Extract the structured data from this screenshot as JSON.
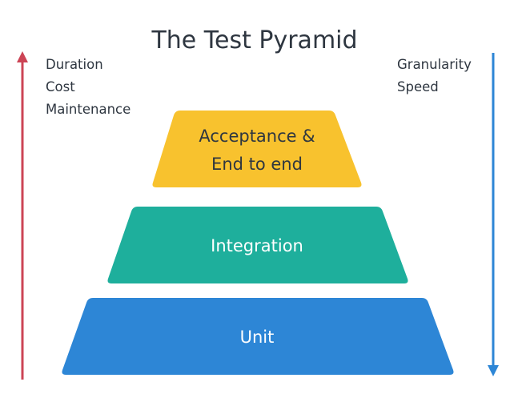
{
  "title": "The Test Pyramid",
  "left_labels": [
    "Duration",
    "Cost",
    "Maintenance"
  ],
  "right_labels": [
    "Granularity",
    "Speed"
  ],
  "left_arrow": {
    "direction": "up",
    "color": "#cc4455"
  },
  "right_arrow": {
    "direction": "down",
    "color": "#2d86d6"
  },
  "tiers": [
    {
      "lines": [
        "Acceptance &",
        "End to end"
      ],
      "color": "#f8c22e",
      "text_color": "#2e3640"
    },
    {
      "lines": [
        "Integration"
      ],
      "color": "#1eaf9c",
      "text_color": "#ffffff"
    },
    {
      "lines": [
        "Unit"
      ],
      "color": "#2d86d6",
      "text_color": "#ffffff"
    }
  ]
}
